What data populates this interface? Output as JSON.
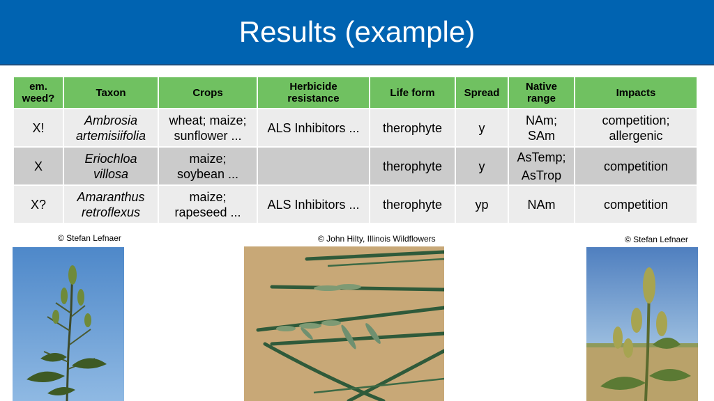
{
  "title": "Results (example)",
  "table": {
    "headers": [
      "em.\nweed?",
      "Taxon",
      "Crops",
      "Herbicide\nresistance",
      "Life form",
      "Spread",
      "Native\nrange",
      "Impacts"
    ],
    "rows": [
      {
        "em_weed": "X!",
        "taxon": "Ambrosia\nartemisiifolia",
        "crops": "wheat; maize;\nsunflower ...",
        "herbicide": "ALS Inhibitors ...",
        "life_form": "therophyte",
        "spread": "y",
        "native_range": "NAm;\nSAm",
        "impacts": "competition;\nallergenic"
      },
      {
        "em_weed": "X",
        "taxon": "Eriochloa\nvillosa",
        "crops": "maize;\nsoybean ...",
        "herbicide": "",
        "life_form": "therophyte",
        "spread": "y",
        "native_range": "AsTemp;\nAsTrop",
        "impacts": "competition"
      },
      {
        "em_weed": "X?",
        "taxon": "Amaranthus\nretroflexus",
        "crops": "maize;\nrapeseed ...",
        "herbicide": "ALS Inhibitors ...",
        "life_form": "therophyte",
        "spread": "yp",
        "native_range": "NAm",
        "impacts": "competition"
      }
    ]
  },
  "photos": [
    {
      "credit": "© Stefan Lefnaer",
      "subject": "ragweed-plant-photo"
    },
    {
      "credit": "© John Hilty, Illinois Wildflowers",
      "subject": "grass-seedheads-photo"
    },
    {
      "credit": "© Stefan Lefnaer",
      "subject": "amaranth-plant-photo"
    }
  ],
  "colors": {
    "title_bar": "#0063b1",
    "header_green": "#70c161",
    "row_light": "#ececec",
    "row_dark": "#cbcbcb"
  }
}
